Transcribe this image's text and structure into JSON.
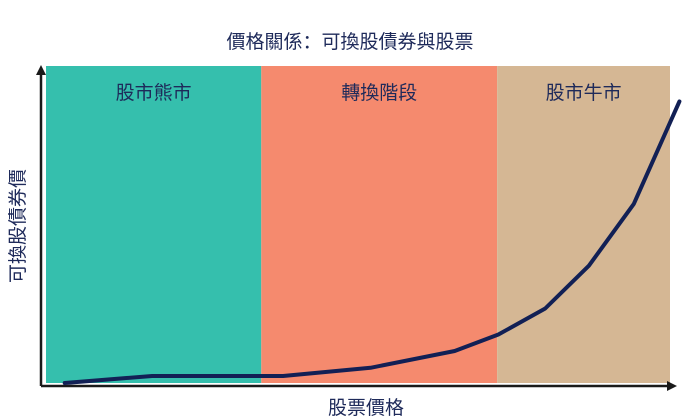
{
  "chart_data": {
    "type": "line",
    "title": "價格關係：可換股債券與股票",
    "xlabel": "股票價格",
    "ylabel": "可換股債券價",
    "xlim": [
      0,
      100
    ],
    "ylim": [
      0,
      100
    ],
    "grid": false,
    "zones": [
      {
        "label": "股市熊市",
        "x_start": 0,
        "x_end": 34.5,
        "color": "#35bfad"
      },
      {
        "label": "轉換階段",
        "x_start": 34.5,
        "x_end": 72.3,
        "color": "#f58a6e"
      },
      {
        "label": "股市牛市",
        "x_start": 72.3,
        "x_end": 100,
        "color": "#d5b794"
      }
    ],
    "series": [
      {
        "color": "#122055",
        "points": [
          [
            3.0,
            0.0
          ],
          [
            17.0,
            2.2
          ],
          [
            38.0,
            2.2
          ],
          [
            52.0,
            4.8
          ],
          [
            65.5,
            10.1
          ],
          [
            72.5,
            15.3
          ],
          [
            80.0,
            23.5
          ],
          [
            87.0,
            37.0
          ],
          [
            94.2,
            56.5
          ],
          [
            101.5,
            88.8
          ]
        ]
      }
    ]
  }
}
